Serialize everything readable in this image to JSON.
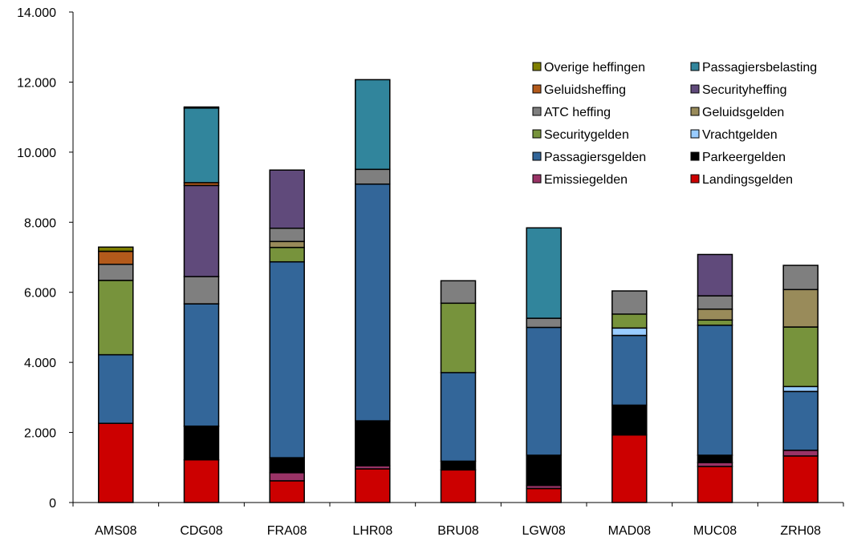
{
  "chart_data": {
    "type": "bar",
    "stacked": true,
    "categories": [
      "AMS08",
      "CDG08",
      "FRA08",
      "LHR08",
      "BRU08",
      "LGW08",
      "MAD08",
      "MUC08",
      "ZRH08"
    ],
    "ylim": [
      0,
      14000
    ],
    "yticks": [
      0,
      2000,
      4000,
      6000,
      8000,
      10000,
      12000,
      14000
    ],
    "ytick_labels": [
      "0",
      "2.000",
      "4.000",
      "6.000",
      "8.000",
      "10.000",
      "12.000",
      "14.000"
    ],
    "grid": false,
    "legend_position": "top-right",
    "series": [
      {
        "name": "Landingsgelden",
        "color": "#cc0000",
        "values": [
          2260,
          1220,
          620,
          960,
          930,
          400,
          1930,
          1030,
          1330
        ]
      },
      {
        "name": "Emissiegelden",
        "color": "#993366",
        "values": [
          0,
          0,
          230,
          90,
          0,
          90,
          0,
          110,
          160
        ]
      },
      {
        "name": "Parkeergelden",
        "color": "#000000",
        "values": [
          0,
          960,
          430,
          1280,
          250,
          860,
          850,
          210,
          0
        ]
      },
      {
        "name": "Passagiersgelden",
        "color": "#336699",
        "values": [
          1960,
          3490,
          5590,
          6760,
          2530,
          3650,
          1990,
          3710,
          1680
        ]
      },
      {
        "name": "Vrachtgelden",
        "color": "#99ccff",
        "values": [
          0,
          0,
          0,
          0,
          0,
          0,
          210,
          0,
          140
        ]
      },
      {
        "name": "Securitygelden",
        "color": "#77933c",
        "values": [
          2120,
          0,
          410,
          0,
          1980,
          0,
          400,
          150,
          1700
        ]
      },
      {
        "name": "Geluidsgelden",
        "color": "#998b5a",
        "values": [
          0,
          0,
          170,
          0,
          0,
          0,
          0,
          310,
          1070
        ]
      },
      {
        "name": "ATC heffing",
        "color": "#7f7f7f",
        "values": [
          460,
          780,
          380,
          420,
          640,
          260,
          660,
          380,
          690
        ]
      },
      {
        "name": "Securityheffing",
        "color": "#604a7b",
        "values": [
          0,
          2600,
          1660,
          0,
          0,
          0,
          0,
          1180,
          0
        ]
      },
      {
        "name": "Geluidsheffing",
        "color": "#b35a1b",
        "values": [
          370,
          80,
          0,
          0,
          0,
          0,
          0,
          0,
          0
        ]
      },
      {
        "name": "Passagiersbelasting",
        "color": "#31859c",
        "values": [
          0,
          2130,
          0,
          2560,
          0,
          2580,
          0,
          0,
          0
        ]
      },
      {
        "name": "Overige heffingen",
        "color": "#7f7f00",
        "values": [
          120,
          30,
          0,
          0,
          0,
          0,
          0,
          0,
          0
        ]
      }
    ],
    "legend_order": [
      "Overige heffingen",
      "Passagiersbelasting",
      "Geluidsheffing",
      "Securityheffing",
      "ATC heffing",
      "Geluidsgelden",
      "Securitygelden",
      "Vrachtgelden",
      "Passagiersgelden",
      "Parkeergelden",
      "Emissiegelden",
      "Landingsgelden"
    ]
  }
}
